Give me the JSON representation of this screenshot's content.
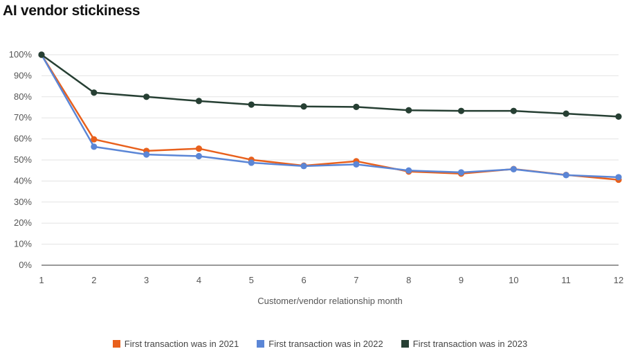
{
  "title": "AI vendor stickiness",
  "chart_data": {
    "type": "line",
    "title": "AI vendor stickiness",
    "xlabel": "Customer/vendor relationship month",
    "ylabel": "",
    "x": [
      1,
      2,
      3,
      4,
      5,
      6,
      7,
      8,
      9,
      10,
      11,
      12
    ],
    "x_ticks": [
      "1",
      "2",
      "3",
      "4",
      "5",
      "6",
      "7",
      "8",
      "9",
      "10",
      "11",
      "12"
    ],
    "ylim": [
      0,
      100
    ],
    "y_ticks": [
      "0%",
      "10%",
      "20%",
      "30%",
      "40%",
      "50%",
      "60%",
      "70%",
      "80%",
      "90%",
      "100%"
    ],
    "y_tick_values": [
      0,
      10,
      20,
      30,
      40,
      50,
      60,
      70,
      80,
      90,
      100
    ],
    "grid": "horizontal",
    "legend_position": "bottom",
    "series": [
      {
        "name": "First transaction was in 2021",
        "color": "#e8601c",
        "values": [
          100,
          59.8,
          54.3,
          55.4,
          50.1,
          47.3,
          49.4,
          44.5,
          43.5,
          45.7,
          42.9,
          40.6
        ]
      },
      {
        "name": "First transaction was in 2022",
        "color": "#5b86d6",
        "values": [
          100,
          56.3,
          52.6,
          51.8,
          48.7,
          47.1,
          47.9,
          45.0,
          44.1,
          45.6,
          42.8,
          41.8
        ]
      },
      {
        "name": "First transaction was in 2023",
        "color": "#263f33",
        "values": [
          100,
          82.0,
          80.0,
          78.0,
          76.3,
          75.4,
          75.2,
          73.6,
          73.3,
          73.3,
          72.0,
          70.6
        ]
      }
    ]
  }
}
